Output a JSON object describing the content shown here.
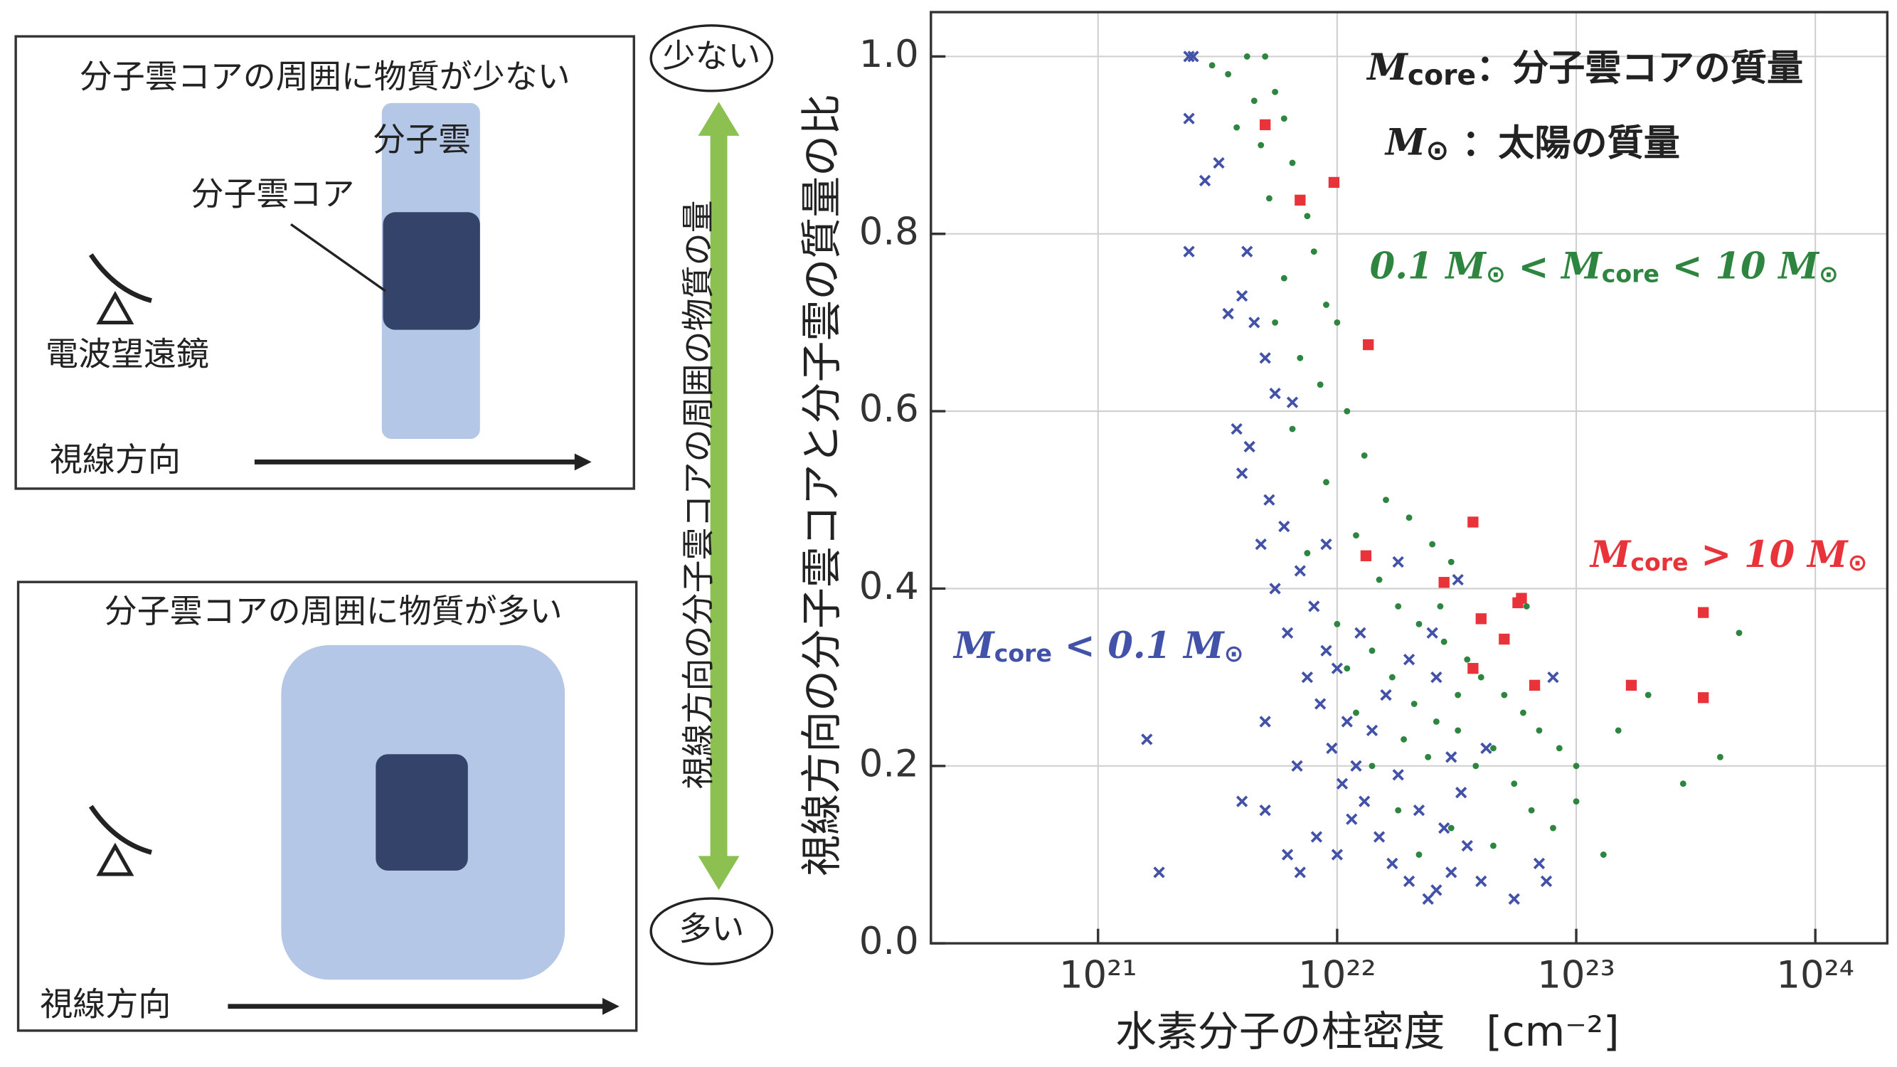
{
  "diagram": {
    "panel_top": {
      "title": "分子雲コアの周囲に物質が少ない",
      "cloud": "分子雲",
      "core": "分子雲コア",
      "telescope": "電波望遠鏡",
      "line_of_sight": "視線方向"
    },
    "panel_bottom": {
      "title": "分子雲コアの周囲に物質が多い",
      "line_of_sight": "視線方向"
    },
    "scale": {
      "top": "少ない",
      "bottom": "多い",
      "label": "視線方向の分子雲コアの周囲の物質の量"
    }
  },
  "chart_data": {
    "type": "scatter",
    "xlabel": "水素分子の柱密度　[cm⁻²]",
    "ylabel": "視線方向の分子雲コアと分子雲の質量の比",
    "xscale": "log",
    "xlim": [
      2e+20,
      2e+24
    ],
    "ylim": [
      0,
      1.05
    ],
    "grid": true,
    "xticks": [
      {
        "value": 1e+21,
        "label": "10²¹"
      },
      {
        "value": 1e+22,
        "label": "10²²"
      },
      {
        "value": 1e+23,
        "label": "10²³"
      },
      {
        "value": 1e+24,
        "label": "10²⁴"
      }
    ],
    "yticks": [
      {
        "value": 0,
        "label": "0.0"
      },
      0.2,
      0.4,
      0.6,
      0.8,
      {
        "value": 1,
        "label": "1.0"
      }
    ],
    "annotations": [
      {
        "color": "#222222",
        "parts": [
          {
            "t": "M",
            "s": "it"
          },
          {
            "t": "core",
            "s": "sub"
          },
          {
            "t": "：分子雲コアの質量"
          }
        ]
      },
      {
        "color": "#222222",
        "parts": [
          {
            "t": "M",
            "s": "it"
          },
          {
            "t": "⊙",
            "s": "sub"
          },
          {
            "t": " ：太陽の質量"
          }
        ]
      },
      {
        "color": "#2e8540",
        "parts": [
          {
            "t": "0.1 ",
            "s": "it"
          },
          {
            "t": "M",
            "s": "it"
          },
          {
            "t": "⊙",
            "s": "sub"
          },
          {
            "t": " < "
          },
          {
            "t": "M",
            "s": "it"
          },
          {
            "t": "core",
            "s": "sub"
          },
          {
            "t": " < 10 ",
            "s": "it"
          },
          {
            "t": "M",
            "s": "it"
          },
          {
            "t": "⊙",
            "s": "sub"
          }
        ]
      },
      {
        "color": "#e8333a",
        "parts": [
          {
            "t": "M",
            "s": "it"
          },
          {
            "t": "core",
            "s": "sub"
          },
          {
            "t": " > 10 ",
            "s": "it"
          },
          {
            "t": "M",
            "s": "it"
          },
          {
            "t": "⊙",
            "s": "sub"
          }
        ]
      },
      {
        "color": "#4252a8",
        "parts": [
          {
            "t": "M",
            "s": "it"
          },
          {
            "t": "core",
            "s": "sub"
          },
          {
            "t": " < 0.1 ",
            "s": "it"
          },
          {
            "t": "M",
            "s": "it"
          },
          {
            "t": "⊙",
            "s": "sub"
          }
        ]
      }
    ],
    "series": [
      {
        "color": "#4252a8",
        "marker": "x",
        "x": [
          2.4e+21,
          2.5e+21,
          2.4e+21,
          2.8e+21,
          3.2e+21,
          2.4e+21,
          4.2e+21,
          4e+21,
          3.5e+21,
          4.5e+21,
          5e+21,
          3.8e+21,
          5.5e+21,
          4.3e+21,
          6.5e+21,
          4e+21,
          5.2e+21,
          6e+21,
          4.8e+21,
          7e+21,
          5.5e+21,
          8e+21,
          6.2e+21,
          9e+21,
          7.5e+21,
          1e+22,
          8.5e+21,
          1.1e+22,
          9.5e+21,
          1.2e+22,
          1.05e+22,
          1.3e+22,
          1.15e+22,
          1.5e+22,
          1e+22,
          1.7e+22,
          2e+22,
          2.4e+22,
          2.6e+22,
          3e+22,
          3.5e+22,
          4e+22,
          5.5e+22,
          7e+22,
          7.5e+22,
          2.2e+22,
          2.8e+22,
          1.8e+22,
          3.3e+22,
          1.4e+22,
          1.6e+22,
          2e+22,
          2.5e+22,
          3.2e+22,
          1.8e+22,
          2.6e+22,
          4.2e+22,
          8e+22,
          3e+22,
          1.8e+21,
          1.6e+21,
          4e+21,
          5e+21,
          6.2e+21,
          7e+21,
          8.2e+21,
          5e+21,
          6.8e+21,
          1.25e+22,
          9e+21
        ],
        "values": [
          1.0,
          1.0,
          0.93,
          0.86,
          0.88,
          0.78,
          0.78,
          0.73,
          0.71,
          0.7,
          0.66,
          0.58,
          0.62,
          0.56,
          0.61,
          0.53,
          0.5,
          0.47,
          0.45,
          0.42,
          0.4,
          0.38,
          0.35,
          0.33,
          0.3,
          0.31,
          0.27,
          0.25,
          0.22,
          0.2,
          0.18,
          0.16,
          0.14,
          0.12,
          0.1,
          0.09,
          0.07,
          0.05,
          0.06,
          0.08,
          0.11,
          0.07,
          0.05,
          0.09,
          0.07,
          0.15,
          0.13,
          0.19,
          0.17,
          0.24,
          0.28,
          0.32,
          0.35,
          0.41,
          0.43,
          0.3,
          0.22,
          0.3,
          0.21,
          0.08,
          0.23,
          0.16,
          0.15,
          0.1,
          0.08,
          0.12,
          0.25,
          0.2,
          0.35,
          0.45
        ]
      },
      {
        "color": "#2e8540",
        "marker": "circle",
        "x": [
          3e+21,
          3.5e+21,
          4.2e+21,
          5e+21,
          4.5e+21,
          5.5e+21,
          6e+21,
          4.8e+21,
          3.8e+21,
          6.5e+21,
          7.5e+21,
          5.2e+21,
          8e+21,
          6e+21,
          9e+21,
          1e+22,
          5.5e+21,
          7e+21,
          8.5e+21,
          1.1e+22,
          6.5e+21,
          1.3e+22,
          9e+21,
          1.6e+22,
          2e+22,
          1.2e+22,
          2.5e+22,
          7.5e+21,
          3e+22,
          1.5e+22,
          1.8e+22,
          2.2e+22,
          1e+22,
          2.8e+22,
          3.5e+22,
          1.4e+22,
          4e+22,
          1.7e+22,
          5e+22,
          2.1e+22,
          2.6e+22,
          6e+22,
          3.2e+22,
          7e+22,
          1.2e+22,
          4.5e+22,
          3.8e+22,
          8.5e+22,
          1e+23,
          5.5e+22,
          2.4e+22,
          1.5e+23,
          6.5e+22,
          8e+22,
          1e+23,
          1.3e+23,
          2e+23,
          2.8e+23,
          4e+23,
          4.8e+23,
          1.8e+22,
          3e+22,
          2.2e+22,
          4.5e+22,
          1.4e+22,
          3.2e+22,
          1.9e+22,
          1.1e+22,
          6.2e+22,
          2.7e+22
        ],
        "values": [
          0.99,
          0.98,
          1.0,
          1.0,
          0.95,
          0.96,
          0.93,
          0.9,
          0.92,
          0.88,
          0.82,
          0.84,
          0.78,
          0.75,
          0.72,
          0.7,
          0.7,
          0.66,
          0.63,
          0.6,
          0.58,
          0.55,
          0.52,
          0.5,
          0.48,
          0.46,
          0.45,
          0.44,
          0.43,
          0.41,
          0.38,
          0.36,
          0.36,
          0.34,
          0.32,
          0.33,
          0.3,
          0.3,
          0.28,
          0.27,
          0.25,
          0.26,
          0.24,
          0.24,
          0.26,
          0.22,
          0.2,
          0.22,
          0.2,
          0.18,
          0.21,
          0.24,
          0.15,
          0.13,
          0.16,
          0.1,
          0.28,
          0.18,
          0.21,
          0.35,
          0.15,
          0.13,
          0.1,
          0.11,
          0.2,
          0.28,
          0.23,
          0.31,
          0.38,
          0.38
        ]
      },
      {
        "color": "#e8333a",
        "marker": "square",
        "x": [
          5e+21,
          7e+21,
          9.7e+21,
          1.35e+22,
          1.32e+22,
          2.8e+22,
          3.7e+22,
          4e+22,
          3.7e+22,
          5e+22,
          5.7e+22,
          5.9e+22,
          6.7e+22,
          1.7e+23,
          3.4e+23,
          3.4e+23
        ],
        "values": [
          0.923,
          0.838,
          0.858,
          0.675,
          0.437,
          0.407,
          0.475,
          0.366,
          0.31,
          0.343,
          0.384,
          0.389,
          0.291,
          0.291,
          0.373,
          0.277
        ]
      }
    ]
  }
}
